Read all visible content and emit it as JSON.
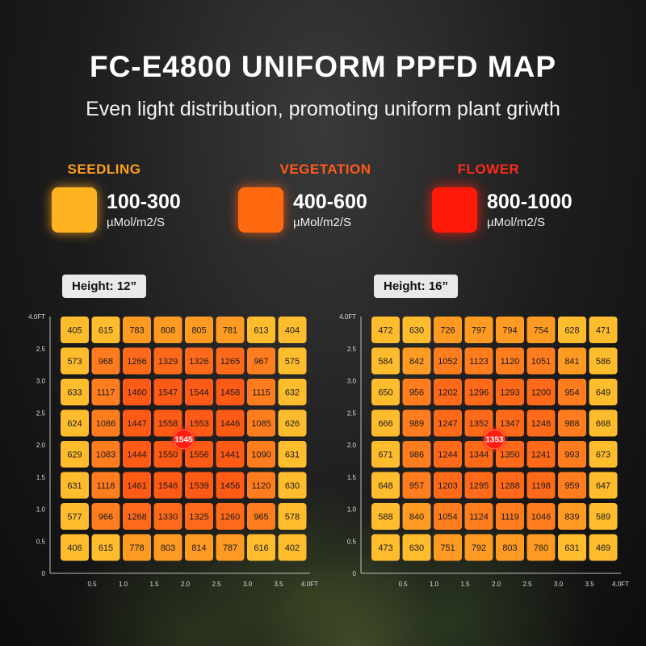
{
  "header": {
    "title": "FC-E4800 UNIFORM PPFD MAP",
    "subtitle": "Even light distribution, promoting uniform plant griwth"
  },
  "legend": [
    {
      "name": "SEEDLING",
      "range": "100-300",
      "unit": "µMol/m2/S",
      "name_color": "#ff9f1a",
      "swatch_color": "#ffb320"
    },
    {
      "name": "VEGETATION",
      "range": "400-600",
      "unit": "µMol/m2/S",
      "name_color": "#ff5a1a",
      "swatch_color": "#ff6a10"
    },
    {
      "name": "FLOWER",
      "range": "800-1000",
      "unit": "µMol/m2/S",
      "name_color": "#ff2a1a",
      "swatch_color": "#ff1a0a"
    }
  ],
  "chart_data": [
    {
      "type": "heatmap",
      "label": "Height: 12”",
      "y_ticks": [
        "4.0FT",
        "2.5",
        "3.0",
        "2.5",
        "2.0",
        "1.5",
        "1.0",
        "0.5",
        "0"
      ],
      "x_ticks": [
        "0.5",
        "1.0",
        "1.5",
        "2.0",
        "2.5",
        "3.0",
        "3.5",
        "4.0FT"
      ],
      "center_value": "1545",
      "grid": [
        [
          405,
          615,
          783,
          808,
          805,
          781,
          613,
          404
        ],
        [
          573,
          968,
          1266,
          1329,
          1326,
          1265,
          967,
          575
        ],
        [
          633,
          1117,
          1460,
          1547,
          1544,
          1458,
          1115,
          632
        ],
        [
          624,
          1086,
          1447,
          1558,
          1553,
          1446,
          1085,
          626
        ],
        [
          629,
          1083,
          1444,
          1550,
          1556,
          1441,
          1090,
          631
        ],
        [
          631,
          1118,
          1461,
          1546,
          1539,
          1456,
          1120,
          630
        ],
        [
          577,
          966,
          1268,
          1330,
          1325,
          1260,
          965,
          578
        ],
        [
          406,
          615,
          778,
          803,
          814,
          787,
          616,
          402
        ]
      ]
    },
    {
      "type": "heatmap",
      "label": "Height: 16”",
      "y_ticks": [
        "4.0FT",
        "2.5",
        "3.0",
        "2.5",
        "2.0",
        "1.5",
        "1.0",
        "0.5",
        "0"
      ],
      "x_ticks": [
        "0.5",
        "1.0",
        "1.5",
        "2.0",
        "2.5",
        "3.0",
        "3.5",
        "4.0FT"
      ],
      "center_value": "1353",
      "grid": [
        [
          472,
          630,
          726,
          797,
          794,
          754,
          628,
          471
        ],
        [
          584,
          842,
          1052,
          1123,
          1120,
          1051,
          841,
          586
        ],
        [
          650,
          956,
          1202,
          1296,
          1293,
          1200,
          954,
          649
        ],
        [
          666,
          989,
          1247,
          1352,
          1347,
          1246,
          988,
          668
        ],
        [
          671,
          986,
          1244,
          1344,
          1350,
          1241,
          993,
          673
        ],
        [
          648,
          957,
          1203,
          1295,
          1288,
          1198,
          959,
          647
        ],
        [
          588,
          840,
          1054,
          1124,
          1119,
          1046,
          839,
          589
        ],
        [
          473,
          630,
          751,
          792,
          803,
          760,
          631,
          469
        ]
      ]
    }
  ]
}
